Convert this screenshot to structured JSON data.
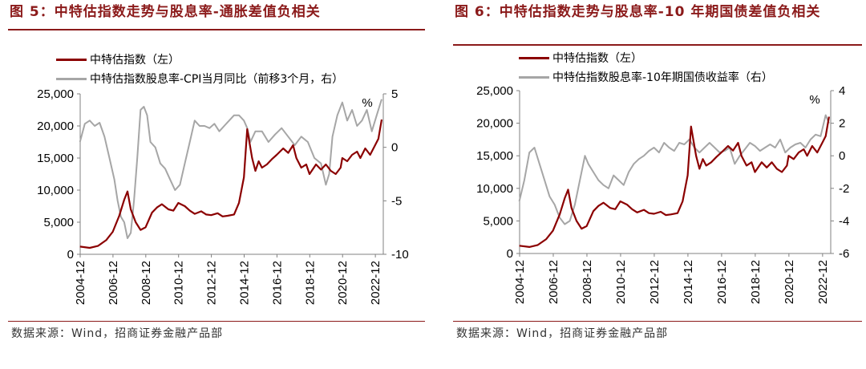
{
  "colors": {
    "primary": "#8b0000",
    "secondary": "#a6a6a6",
    "title": "#8b1a1a"
  },
  "left": {
    "title": "图 5：中特估指数走势与股息率-通胀差值负相关",
    "legend": [
      "中特估指数（左）",
      "中特估指数股息率-CPI当月同比（前移3个月，右）"
    ],
    "unit_label": "%",
    "source": "数据来源：Wind，招商证券金融产品部"
  },
  "right": {
    "title": "图 6：中特估指数走势与股息率-10 年期国债差值负相关",
    "legend": [
      "中特估指数（左）",
      "中特估指数股息率-10年期国债收益率（右）"
    ],
    "unit_label": "%",
    "source": "数据来源：Wind，招商证券金融产品部"
  },
  "chart_data": [
    {
      "type": "line",
      "title": "图 5：中特估指数走势与股息率-通胀差值负相关",
      "x_tick_labels": [
        "2004-12",
        "2006-12",
        "2008-12",
        "2010-12",
        "2012-12",
        "2014-12",
        "2016-12",
        "2018-12",
        "2020-12",
        "2022-12"
      ],
      "y_left": {
        "ylim": [
          0,
          25000
        ],
        "ticks": [
          "0",
          "5,000",
          "10,000",
          "15,000",
          "20,000",
          "25,000"
        ]
      },
      "y_right": {
        "ylim": [
          -10,
          5
        ],
        "ticks": [
          "-10",
          "-5",
          "0",
          "5"
        ]
      },
      "series": [
        {
          "name": "中特估指数（左）",
          "axis": "left",
          "x": [
            2004.9,
            2005.5,
            2006.0,
            2006.5,
            2006.9,
            2007.3,
            2007.6,
            2007.8,
            2008.0,
            2008.3,
            2008.6,
            2008.9,
            2009.3,
            2009.6,
            2009.9,
            2010.3,
            2010.6,
            2010.9,
            2011.3,
            2011.6,
            2011.9,
            2012.3,
            2012.6,
            2012.9,
            2013.3,
            2013.6,
            2013.9,
            2014.3,
            2014.6,
            2014.9,
            2015.1,
            2015.4,
            2015.6,
            2015.8,
            2016.0,
            2016.3,
            2016.6,
            2016.9,
            2017.3,
            2017.6,
            2017.9,
            2018.1,
            2018.4,
            2018.7,
            2018.9,
            2019.3,
            2019.6,
            2019.9,
            2020.2,
            2020.5,
            2020.8,
            2020.9,
            2021.2,
            2021.5,
            2021.8,
            2022.0,
            2022.3,
            2022.6,
            2022.9,
            2023.1,
            2023.3
          ],
          "values": [
            1200,
            1000,
            1300,
            2200,
            3500,
            6000,
            8500,
            9800,
            7000,
            5000,
            3800,
            4200,
            6500,
            7300,
            7800,
            7000,
            6800,
            8000,
            7500,
            6800,
            6300,
            6700,
            6200,
            6100,
            6400,
            5900,
            6000,
            6200,
            8000,
            12000,
            19500,
            15000,
            13000,
            14500,
            13500,
            14000,
            14800,
            15500,
            16500,
            15800,
            17000,
            15000,
            13500,
            14000,
            12500,
            14000,
            13200,
            14000,
            13000,
            12500,
            13500,
            15000,
            14500,
            15500,
            16000,
            15000,
            16500,
            15500,
            17000,
            18000,
            21000
          ]
        },
        {
          "name": "中特估指数股息率-CPI当月同比（前移3个月，右）",
          "axis": "right",
          "x": [
            2004.9,
            2005.2,
            2005.5,
            2005.8,
            2006.1,
            2006.4,
            2006.7,
            2007.0,
            2007.2,
            2007.4,
            2007.6,
            2007.8,
            2008.0,
            2008.2,
            2008.4,
            2008.6,
            2008.8,
            2009.0,
            2009.2,
            2009.5,
            2009.8,
            2010.1,
            2010.4,
            2010.7,
            2011.0,
            2011.3,
            2011.6,
            2011.9,
            2012.2,
            2012.5,
            2012.8,
            2013.1,
            2013.4,
            2013.7,
            2014.0,
            2014.3,
            2014.6,
            2014.9,
            2015.1,
            2015.3,
            2015.6,
            2016.0,
            2016.4,
            2016.8,
            2017.2,
            2017.6,
            2018.0,
            2018.4,
            2018.8,
            2019.2,
            2019.6,
            2019.9,
            2020.1,
            2020.3,
            2020.6,
            2020.9,
            2021.2,
            2021.5,
            2021.8,
            2022.1,
            2022.4,
            2022.7,
            2023.0,
            2023.3
          ],
          "values": [
            0.5,
            2.2,
            2.5,
            2.0,
            2.3,
            1.0,
            -1.0,
            -3.0,
            -5.0,
            -6.5,
            -7.0,
            -8.5,
            -8.0,
            -5.0,
            -1.0,
            3.5,
            3.8,
            3.0,
            0.5,
            0.0,
            -1.5,
            -2.0,
            -3.0,
            -4.0,
            -3.5,
            -1.5,
            0.5,
            2.5,
            2.0,
            2.0,
            1.8,
            2.2,
            1.5,
            2.0,
            2.5,
            3.0,
            3.0,
            2.5,
            1.8,
            0.5,
            1.5,
            1.5,
            0.5,
            1.2,
            1.8,
            1.0,
            0.2,
            1.0,
            0.5,
            -1.0,
            -1.5,
            -3.5,
            -2.5,
            1.0,
            3.0,
            4.2,
            2.5,
            3.5,
            2.0,
            2.5,
            3.5,
            1.5,
            3.0,
            4.5
          ]
        }
      ]
    },
    {
      "type": "line",
      "title": "图 6：中特估指数走势与股息率-10 年期国债差值负相关",
      "x_tick_labels": [
        "2004-12",
        "2006-12",
        "2008-12",
        "2010-12",
        "2012-12",
        "2014-12",
        "2016-12",
        "2018-12",
        "2020-12",
        "2022-12"
      ],
      "y_left": {
        "ylim": [
          0,
          25000
        ],
        "ticks": [
          "0",
          "5,000",
          "10,000",
          "15,000",
          "20,000",
          "25,000"
        ]
      },
      "y_right": {
        "ylim": [
          -6,
          4
        ],
        "ticks": [
          "-6",
          "-4",
          "-2",
          "0",
          "2",
          "4"
        ]
      },
      "series": [
        {
          "name": "中特估指数（左）",
          "axis": "left",
          "x": [
            2004.9,
            2005.5,
            2006.0,
            2006.5,
            2006.9,
            2007.3,
            2007.6,
            2007.8,
            2008.0,
            2008.3,
            2008.6,
            2008.9,
            2009.3,
            2009.6,
            2009.9,
            2010.3,
            2010.6,
            2010.9,
            2011.3,
            2011.6,
            2011.9,
            2012.3,
            2012.6,
            2012.9,
            2013.3,
            2013.6,
            2013.9,
            2014.3,
            2014.6,
            2014.9,
            2015.1,
            2015.4,
            2015.6,
            2015.8,
            2016.0,
            2016.3,
            2016.6,
            2016.9,
            2017.3,
            2017.6,
            2017.9,
            2018.1,
            2018.4,
            2018.7,
            2018.9,
            2019.3,
            2019.6,
            2019.9,
            2020.2,
            2020.5,
            2020.8,
            2020.9,
            2021.2,
            2021.5,
            2021.8,
            2022.0,
            2022.3,
            2022.6,
            2022.9,
            2023.1,
            2023.3
          ],
          "values": [
            1200,
            1000,
            1300,
            2200,
            3500,
            6000,
            8500,
            9800,
            7000,
            5000,
            3800,
            4200,
            6500,
            7300,
            7800,
            7000,
            6800,
            8000,
            7500,
            6800,
            6300,
            6700,
            6200,
            6100,
            6400,
            5900,
            6000,
            6200,
            8000,
            12000,
            19500,
            15000,
            13000,
            14500,
            13500,
            14000,
            14800,
            15500,
            16500,
            15800,
            17000,
            15000,
            13500,
            14000,
            12500,
            14000,
            13200,
            14000,
            13000,
            12500,
            13500,
            15000,
            14500,
            15500,
            16000,
            15000,
            16500,
            15500,
            17000,
            18000,
            21000
          ]
        },
        {
          "name": "中特估指数股息率-10年期国债收益率（右）",
          "axis": "right",
          "x": [
            2004.9,
            2005.2,
            2005.5,
            2005.8,
            2006.1,
            2006.4,
            2006.7,
            2007.0,
            2007.3,
            2007.6,
            2007.9,
            2008.2,
            2008.5,
            2008.8,
            2009.0,
            2009.3,
            2009.6,
            2009.9,
            2010.2,
            2010.5,
            2010.8,
            2011.1,
            2011.4,
            2011.7,
            2012.0,
            2012.3,
            2012.6,
            2012.9,
            2013.2,
            2013.5,
            2013.8,
            2014.1,
            2014.4,
            2014.7,
            2015.0,
            2015.3,
            2015.6,
            2015.9,
            2016.2,
            2016.5,
            2016.8,
            2017.1,
            2017.4,
            2017.7,
            2018.0,
            2018.3,
            2018.6,
            2018.9,
            2019.2,
            2019.5,
            2019.8,
            2020.1,
            2020.4,
            2020.7,
            2021.0,
            2021.3,
            2021.6,
            2021.9,
            2022.2,
            2022.5,
            2022.8,
            2023.1,
            2023.3
          ],
          "values": [
            -2.8,
            -1.5,
            0.2,
            0.5,
            -0.5,
            -1.5,
            -2.5,
            -3.0,
            -3.8,
            -4.2,
            -4.0,
            -3.0,
            -1.5,
            0.0,
            -0.5,
            -1.0,
            -1.5,
            -1.8,
            -2.0,
            -1.2,
            -1.5,
            -1.8,
            -1.0,
            -0.5,
            -0.2,
            0.0,
            0.3,
            0.5,
            0.2,
            0.8,
            0.5,
            0.3,
            0.8,
            0.7,
            1.0,
            0.5,
            0.2,
            0.5,
            0.8,
            0.5,
            0.2,
            0.3,
            0.5,
            -0.5,
            0.0,
            0.4,
            0.8,
            0.6,
            0.3,
            0.5,
            0.7,
            0.5,
            1.0,
            0.2,
            0.5,
            0.7,
            0.8,
            0.5,
            1.0,
            1.3,
            1.2,
            2.5,
            2.0
          ]
        }
      ]
    }
  ]
}
